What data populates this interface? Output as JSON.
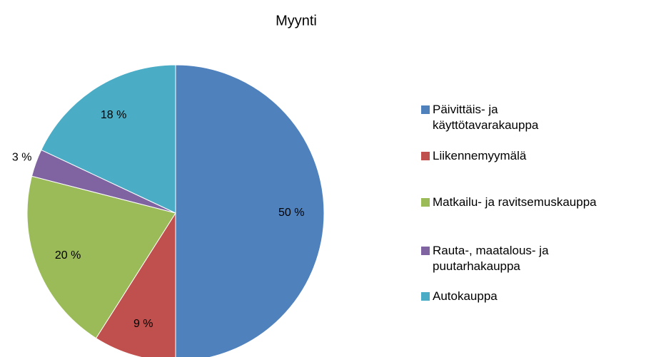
{
  "chart_data": {
    "type": "pie",
    "title": "Myynti",
    "categories": [
      "Päivittäis- ja käyttötavarakauppa",
      "Liikennemyymälä",
      "Matkailu- ja ravitsemuskauppa",
      "Rauta-, maatalous- ja puutarhakauppa",
      "Autokauppa"
    ],
    "values": [
      50,
      9,
      20,
      3,
      18
    ],
    "value_labels": [
      "50 %",
      "9 %",
      "20 %",
      "3 %",
      "18 %"
    ],
    "colors": [
      "#4f81bd",
      "#c0504d",
      "#9bbb59",
      "#8064a2",
      "#4bacc6"
    ],
    "legend": "right"
  }
}
